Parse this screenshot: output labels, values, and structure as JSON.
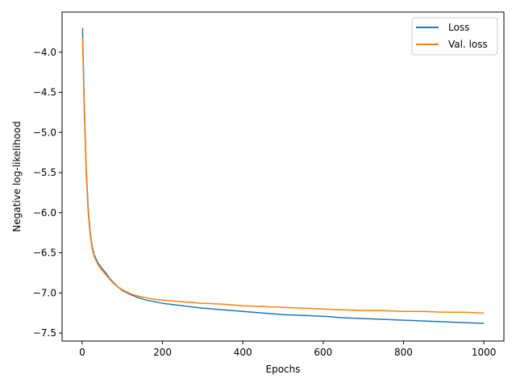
{
  "chart_data": {
    "type": "line",
    "title": "",
    "xlabel": "Epochs",
    "ylabel": "Negative log-likelihood",
    "xlim": [
      -50,
      1050
    ],
    "ylim": [
      -7.6,
      -3.5
    ],
    "xticks": [
      0,
      200,
      400,
      600,
      800,
      1000
    ],
    "xtick_labels": [
      "0",
      "200",
      "400",
      "600",
      "800",
      "1000"
    ],
    "yticks": [
      -4.0,
      -4.5,
      -5.0,
      -5.5,
      -6.0,
      -6.5,
      -7.0,
      -7.5
    ],
    "ytick_labels": [
      "−4.0",
      "−4.5",
      "−5.0",
      "−5.5",
      "−6.0",
      "−6.5",
      "−7.0",
      "−7.5"
    ],
    "grid": false,
    "legend_position": "top-right",
    "series": [
      {
        "name": "Loss",
        "color": "#1f77b4",
        "x": [
          1,
          5,
          10,
          15,
          20,
          25,
          30,
          40,
          50,
          60,
          70,
          80,
          90,
          100,
          120,
          140,
          160,
          180,
          200,
          250,
          300,
          350,
          400,
          450,
          500,
          550,
          600,
          650,
          700,
          750,
          800,
          850,
          900,
          950,
          1000
        ],
        "y": [
          -3.7,
          -4.6,
          -5.45,
          -5.95,
          -6.25,
          -6.42,
          -6.53,
          -6.63,
          -6.7,
          -6.76,
          -6.83,
          -6.88,
          -6.93,
          -6.97,
          -7.02,
          -7.06,
          -7.09,
          -7.11,
          -7.13,
          -7.16,
          -7.19,
          -7.21,
          -7.23,
          -7.25,
          -7.27,
          -7.28,
          -7.29,
          -7.31,
          -7.32,
          -7.33,
          -7.34,
          -7.35,
          -7.36,
          -7.37,
          -7.38
        ]
      },
      {
        "name": "Val. loss",
        "color": "#ff7f0e",
        "x": [
          1,
          5,
          10,
          15,
          20,
          25,
          30,
          40,
          50,
          60,
          70,
          80,
          90,
          100,
          120,
          140,
          160,
          180,
          200,
          250,
          300,
          350,
          400,
          450,
          500,
          550,
          600,
          650,
          700,
          750,
          800,
          850,
          900,
          950,
          1000
        ],
        "y": [
          -3.82,
          -4.7,
          -5.5,
          -6.0,
          -6.28,
          -6.45,
          -6.55,
          -6.65,
          -6.72,
          -6.78,
          -6.84,
          -6.89,
          -6.93,
          -6.96,
          -7.01,
          -7.04,
          -7.06,
          -7.08,
          -7.09,
          -7.11,
          -7.13,
          -7.14,
          -7.16,
          -7.17,
          -7.18,
          -7.19,
          -7.2,
          -7.21,
          -7.22,
          -7.22,
          -7.23,
          -7.23,
          -7.24,
          -7.24,
          -7.25
        ]
      }
    ]
  }
}
